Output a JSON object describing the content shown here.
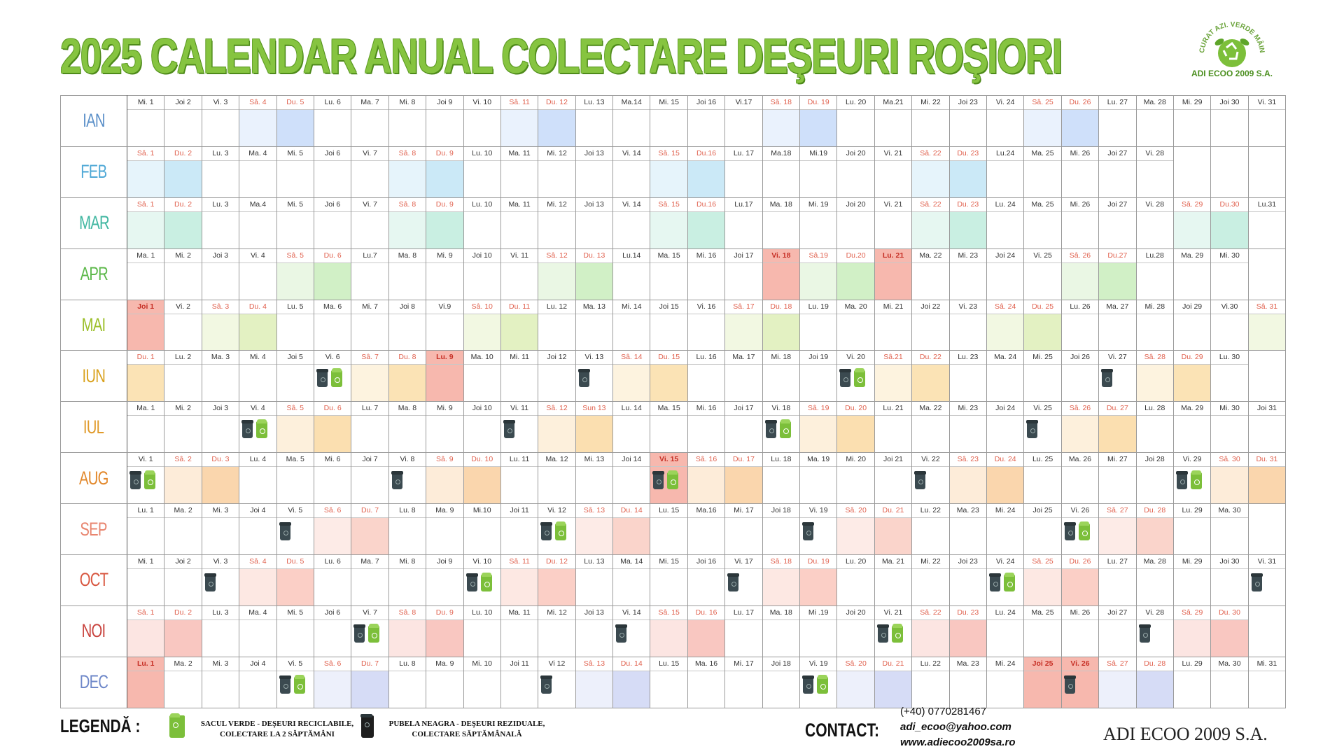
{
  "title": "2025 CALENDAR ANUAL COLECTARE DEŞEURI ROŞIORI",
  "logo": {
    "ring_text": "CURAT AZI. VERDE MÂINE.",
    "brand": "ADI ECOO 2009 S.A."
  },
  "colors": {
    "title_green": "#86c440",
    "legend_green_bin": "#7cbf3a",
    "legend_black_bin": "#3b4a50",
    "holiday_label": "#c62f25"
  },
  "months": [
    {
      "name": "IAN",
      "color": "#5a8fc8",
      "we_light": "#eaf2fd",
      "we_dark": "#cfe0fa",
      "days": [
        "Mi. 1",
        "Joi 2",
        "Vi. 3",
        "Sâ. 4",
        "Du. 5",
        "Lu. 6",
        "Ma. 7",
        "Mi. 8",
        "Joi 9",
        "Vi. 10",
        "Sâ. 11",
        "Du. 12",
        "Lu. 13",
        "Ma.14",
        "Mi. 15",
        "Joi 16",
        "Vi.17",
        "Sâ. 18",
        "Du. 19",
        "Lu. 20",
        "Ma.21",
        "Mi. 22",
        "Joi 23",
        "Vi. 24",
        "Sâ. 25",
        "Du. 26",
        "Lu. 27",
        "Ma. 28",
        "Mi. 29",
        "Joi 30",
        "Vi. 31"
      ],
      "holidays": [],
      "black": [],
      "green": []
    },
    {
      "name": "FEB",
      "color": "#4fa8d6",
      "we_light": "#e6f4fb",
      "we_dark": "#cbe9f7",
      "days": [
        "Sâ. 1",
        "Du. 2",
        "Lu. 3",
        "Ma. 4",
        "Mi. 5",
        "Joi 6",
        "Vi. 7",
        "Sâ. 8",
        "Du. 9",
        "Lu. 10",
        "Ma. 11",
        "Mi. 12",
        "Joi 13",
        "Vi. 14",
        "Sâ. 15",
        "Du.16",
        "Lu. 17",
        "Ma.18",
        "Mi.19",
        "Joi 20",
        "Vi. 21",
        "Sâ. 22",
        "Du. 23",
        "Lu.24",
        "Ma. 25",
        "Mi. 26",
        "Joi 27",
        "Vi. 28"
      ],
      "holidays": [],
      "black": [],
      "green": []
    },
    {
      "name": "MAR",
      "color": "#3fb6a0",
      "we_light": "#e6f7f1",
      "we_dark": "#c9efe2",
      "days": [
        "Sâ. 1",
        "Du. 2",
        "Lu. 3",
        "Ma.4",
        "Mi. 5",
        "Joi 6",
        "Vi. 7",
        "Sâ. 8",
        "Du. 9",
        "Lu. 10",
        "Ma. 11",
        "Mi. 12",
        "Joi 13",
        "Vi. 14",
        "Sâ. 15",
        "Du.16",
        "Lu.17",
        "Ma. 18",
        "Mi. 19",
        "Joi 20",
        "Vi. 21",
        "Sâ. 22",
        "Du. 23",
        "Lu. 24",
        "Ma. 25",
        "Mi. 26",
        "Joi 27",
        "Vi. 28",
        "Sâ. 29",
        "Du.30",
        "Lu.31"
      ],
      "holidays": [],
      "black": [],
      "green": []
    },
    {
      "name": "APR",
      "color": "#5cb84a",
      "we_light": "#eaf7e4",
      "we_dark": "#d1f0c6",
      "days": [
        "Ma. 1",
        "Mi. 2",
        "Joi 3",
        "Vi. 4",
        "Sâ. 5",
        "Du. 6",
        "Lu.7",
        "Ma. 8",
        "Mi. 9",
        "Joi 10",
        "Vi. 11",
        "Sâ. 12",
        "Du. 13",
        "Lu.14",
        "Ma. 15",
        "Mi. 16",
        "Joi 17",
        "Vi. 18",
        "Sâ.19",
        "Du.20",
        "Lu. 21",
        "Ma. 22",
        "Mi. 23",
        "Joi 24",
        "Vi. 25",
        "Sâ. 26",
        "Du.27",
        "Lu.28",
        "Ma. 29",
        "Mi. 30"
      ],
      "holidays": [
        "Vi. 18",
        "Lu. 21"
      ],
      "black": [],
      "green": []
    },
    {
      "name": "MAI",
      "color": "#9cbf2a",
      "we_light": "#f2f8e2",
      "we_dark": "#e3f1c2",
      "days": [
        "Joi 1",
        "Vi. 2",
        "Sâ. 3",
        "Du. 4",
        "Lu. 5",
        "Ma. 6",
        "Mi. 7",
        "Joi 8",
        "Vi.9",
        "Sâ. 10",
        "Du. 11",
        "Lu. 12",
        "Ma. 13",
        "Mi. 14",
        "Joi 15",
        "Vi. 16",
        "Sâ. 17",
        "Du. 18",
        "Lu. 19",
        "Ma. 20",
        "Mi. 21",
        "Joi 22",
        "Vi. 23",
        "Sâ. 24",
        "Du. 25",
        "Lu. 26",
        "Ma. 27",
        "Mi. 28",
        "Joi 29",
        "Vi.30",
        "Sâ. 31"
      ],
      "holidays": [
        "Joi 1"
      ],
      "black": [],
      "green": []
    },
    {
      "name": "IUN",
      "color": "#d9a21e",
      "we_light": "#fdf3df",
      "we_dark": "#fbe3b5",
      "days": [
        "Du. 1",
        "Lu. 2",
        "Ma. 3",
        "Mi. 4",
        "Joi 5",
        "Vi. 6",
        "Sâ. 7",
        "Du. 8",
        "Lu. 9",
        "Ma. 10",
        "Mi. 11",
        "Joi 12",
        "Vi. 13",
        "Sâ. 14",
        "Du. 15",
        "Lu. 16",
        "Ma. 17",
        "Mi. 18",
        "Joi 19",
        "Vi. 20",
        "Sâ.21",
        "Du. 22",
        "Lu. 23",
        "Ma. 24",
        "Mi. 25",
        "Joi 26",
        "Vi. 27",
        "Sâ. 28",
        "Du. 29",
        "Lu. 30"
      ],
      "holidays": [
        "Lu. 9"
      ],
      "black": [
        6,
        13,
        20,
        27
      ],
      "green": [
        6,
        20
      ]
    },
    {
      "name": "IUL",
      "color": "#e09a2a",
      "we_light": "#fdf0dc",
      "we_dark": "#fbdfb0",
      "days": [
        "Ma. 1",
        "Mi. 2",
        "Joi 3",
        "Vi. 4",
        "Sâ. 5",
        "Du. 6",
        "Lu. 7",
        "Ma. 8",
        "Mi. 9",
        "Joi 10",
        "Vi. 11",
        "Sâ. 12",
        "Sun 13",
        "Lu. 14",
        "Ma. 15",
        "Mi. 16",
        "Joi 17",
        "Vi. 18",
        "Sâ. 19",
        "Du. 20",
        "Lu. 21",
        "Ma. 22",
        "Mi. 23",
        "Joi 24",
        "Vi. 25",
        "Sâ. 26",
        "Du. 27",
        "Lu. 28",
        "Ma. 29",
        "Mi. 30",
        "Joi 31"
      ],
      "holidays": [],
      "black": [
        4,
        11,
        18,
        25
      ],
      "green": [
        4,
        18
      ]
    },
    {
      "name": "AUG",
      "color": "#e2872a",
      "we_light": "#fdecd9",
      "we_dark": "#fad6ad",
      "days": [
        "Vi. 1",
        "Sâ. 2",
        "Du. 3",
        "Lu. 4",
        "Ma. 5",
        "Mi. 6",
        "Joi 7",
        "Vi. 8",
        "Sâ. 9",
        "Du. 10",
        "Lu. 11",
        "Ma. 12",
        "Mi. 13",
        "Joi 14",
        "Vi. 15",
        "Sâ. 16",
        "Du. 17",
        "Lu. 18",
        "Ma. 19",
        "Mi. 20",
        "Joi 21",
        "Vi. 22",
        "Sâ. 23",
        "Du. 24",
        "Lu. 25",
        "Ma. 26",
        "Mi. 27",
        "Joi 28",
        "Vi. 29",
        "Sâ. 30",
        "Du. 31"
      ],
      "holidays": [
        "Vi. 15"
      ],
      "black": [
        1,
        8,
        15,
        22,
        29
      ],
      "green": [
        1,
        15,
        29
      ]
    },
    {
      "name": "SEP",
      "color": "#e8856f",
      "we_light": "#fdebe7",
      "we_dark": "#fad4cb",
      "days": [
        "Lu. 1",
        "Ma. 2",
        "Mi. 3",
        "Joi 4",
        "Vi. 5",
        "Sâ. 6",
        "Du. 7",
        "Lu. 8",
        "Ma. 9",
        "Mi.10",
        "Joi 11",
        "Vi. 12",
        "Sâ. 13",
        "Du. 14",
        "Lu. 15",
        "Ma.16",
        "Mi. 17",
        "Joi 18",
        "Vi. 19",
        "Sâ. 20",
        "Du. 21",
        "Lu. 22",
        "Ma. 23",
        "Mi. 24",
        "Joi 25",
        "Vi. 26",
        "Sâ. 27",
        "Du. 28",
        "Lu. 29",
        "Ma. 30"
      ],
      "holidays": [],
      "black": [
        5,
        12,
        19,
        26
      ],
      "green": [
        12,
        26
      ]
    },
    {
      "name": "OCT",
      "color": "#d8563f",
      "we_light": "#fde8e3",
      "we_dark": "#fbcfc6",
      "days": [
        "Mi. 1",
        "Joi 2",
        "Vi. 3",
        "Sâ. 4",
        "Du. 5",
        "Lu. 6",
        "Ma. 7",
        "Mi. 8",
        "Joi 9",
        "Vi. 10",
        "Sâ. 11",
        "Du. 12",
        "Lu. 13",
        "Ma. 14",
        "Mi. 15",
        "Joi 16",
        "Vi. 17",
        "Sâ. 18",
        "Du. 19",
        "Lu. 20",
        "Ma. 21",
        "Mi. 22",
        "Joi 23",
        "Vi. 24",
        "Sâ. 25",
        "Du. 26",
        "Lu. 27",
        "Ma. 28",
        "Mi. 29",
        "Joi 30",
        "Vi. 31"
      ],
      "holidays": [],
      "black": [
        3,
        10,
        17,
        24,
        31
      ],
      "green": [
        10,
        24
      ]
    },
    {
      "name": "NOI",
      "color": "#c9443f",
      "we_light": "#fce5e2",
      "we_dark": "#f9c7c1",
      "days": [
        "Sâ. 1",
        "Du. 2",
        "Lu. 3",
        "Ma. 4",
        "Mi. 5",
        "Joi 6",
        "Vi. 7",
        "Sâ. 8",
        "Du. 9",
        "Lu. 10",
        "Ma. 11",
        "Mi. 12",
        "Joi 13",
        "Vi. 14",
        "Sâ. 15",
        "Du. 16",
        "Lu. 17",
        "Ma. 18",
        "Mi .19",
        "Joi 20",
        "Vi. 21",
        "Sâ. 22",
        "Du. 23",
        "Lu. 24",
        "Ma. 25",
        "Mi. 26",
        "Joi 27",
        "Vi. 28",
        "Sâ. 29",
        "Du. 30"
      ],
      "holidays": [],
      "black": [
        7,
        14,
        21,
        28
      ],
      "green": [
        7,
        21
      ]
    },
    {
      "name": "DEC",
      "color": "#6f88c9",
      "we_light": "#edf0fb",
      "we_dark": "#d6dcf6",
      "days": [
        "Lu. 1",
        "Ma. 2",
        "Mi. 3",
        "Joi 4",
        "Vi. 5",
        "Sâ. 6",
        "Du. 7",
        "Lu. 8",
        "Ma. 9",
        "Mi. 10",
        "Joi 11",
        "Vi 12",
        "Sâ. 13",
        "Du. 14",
        "Lu. 15",
        "Ma. 16",
        "Mi. 17",
        "Joi 18",
        "Vi. 19",
        "Sâ. 20",
        "Du. 21",
        "Lu. 22",
        "Ma. 23",
        "Mi. 24",
        "Joi 25",
        "Vi. 26",
        "Sâ. 27",
        "Du. 28",
        "Lu. 29",
        "Ma. 30",
        "Mi. 31"
      ],
      "holidays": [
        "Lu. 1",
        "Joi 25",
        "Vi. 26"
      ],
      "black": [
        5,
        12,
        19,
        26
      ],
      "green": [
        5,
        19
      ]
    }
  ],
  "holiday_fill": "#f7b8ae",
  "legend": {
    "title": "LEGENDĂ :",
    "green_line1": "SACUL VERDE - DEŞEURI RECICLABILE,",
    "green_line2": "COLECTARE LA 2 SĂPTĂMÂNI",
    "black_line1": "PUBELA NEAGRA - DEŞEURI REZIDUALE,",
    "black_line2": "COLECTARE SĂPTĂMÂNALĂ"
  },
  "contact": {
    "title": "CONTACT:",
    "phone": "(+40) 0770281467",
    "email": "adi_ecoo@yahoo.com",
    "web": "www.adiecoo2009sa.ro"
  },
  "brand_bottom": "ADI ECOO 2009 S.A."
}
